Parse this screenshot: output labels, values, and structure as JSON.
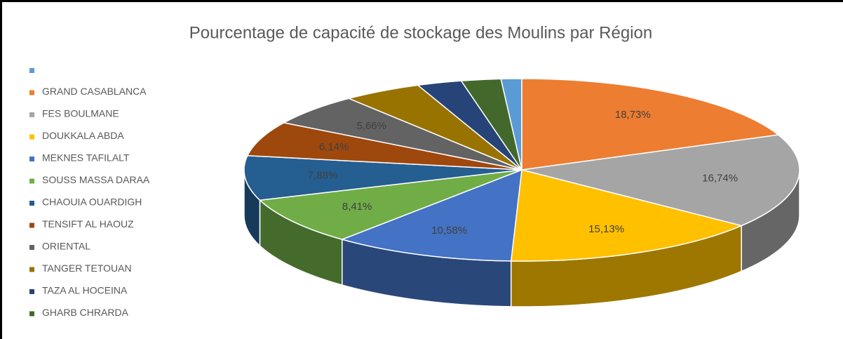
{
  "chart_data": {
    "type": "pie",
    "title": "Pourcentage de capacité de stockage des Moulins par Région",
    "categories": [
      null,
      "GRAND CASABLANCA",
      "FES BOULMANE",
      "DOUKKALA ABDA",
      "MEKNES TAFILALT",
      "SOUSS MASSA DARAA",
      "CHAOUIA OUARDIGH",
      "TENSIFT AL HAOUZ",
      "ORIENTAL",
      "TANGER TETOUAN",
      "TAZA AL HOCEINA",
      "GHARB CHRARDA"
    ],
    "values": [
      1.2,
      18.73,
      16.74,
      15.13,
      10.58,
      8.41,
      7.88,
      6.14,
      5.66,
      4.6,
      2.6,
      2.3
    ],
    "value_labels": [
      null,
      "18,73%",
      "16,74%",
      "15,13%",
      "10,58%",
      "8,41%",
      "7,88%",
      "6,14%",
      "5,66%",
      null,
      null,
      null
    ],
    "colors": [
      "#5b9bd5",
      "#ed7d31",
      "#a5a5a5",
      "#ffc000",
      "#4472c4",
      "#70ad47",
      "#255e91",
      "#9e480e",
      "#636363",
      "#997300",
      "#264478",
      "#43682b"
    ],
    "legend": "left"
  }
}
